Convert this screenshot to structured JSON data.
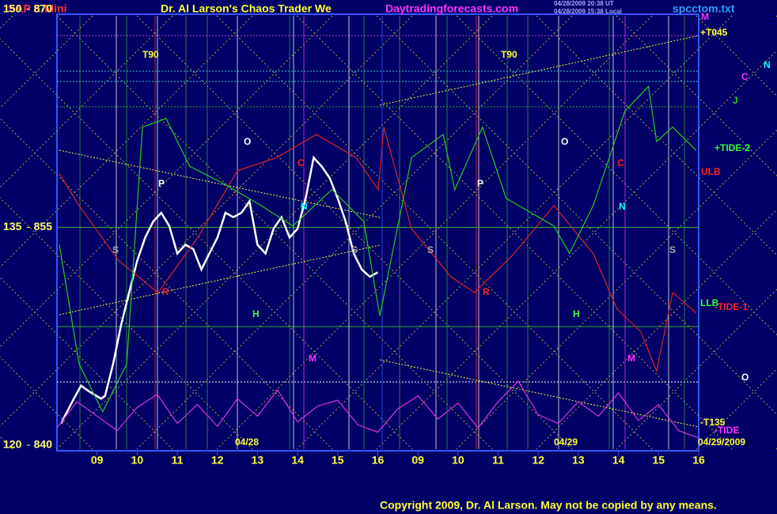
{
  "chart_data": {
    "type": "line",
    "title": "S&P E-Mini",
    "subtitle": "Dr. Al Larson's Chaos Trader We",
    "site": "Daytradingforecasts.com",
    "timestamps": [
      "04/28/2009 20:38 UT",
      "04/28/2009 15:38 Local"
    ],
    "file": "spcctom.txt",
    "copyright": "Copyright 2009, Dr. Al Larson. May not be copied by any means.",
    "xlim": [
      0,
      16
    ],
    "xticks": [
      {
        "value": 1,
        "label": "09"
      },
      {
        "value": 2,
        "label": "10"
      },
      {
        "value": 3,
        "label": "11"
      },
      {
        "value": 4,
        "label": "12"
      },
      {
        "value": 5,
        "label": "13"
      },
      {
        "value": 6,
        "label": "14"
      },
      {
        "value": 7,
        "label": "15"
      },
      {
        "value": 8,
        "label": "16"
      },
      {
        "value": 9,
        "label": "09"
      },
      {
        "value": 10,
        "label": "10"
      },
      {
        "value": 11,
        "label": "11"
      },
      {
        "value": 12,
        "label": "12"
      },
      {
        "value": 13,
        "label": "13"
      },
      {
        "value": 14,
        "label": "14"
      },
      {
        "value": 15,
        "label": "15"
      },
      {
        "value": 16,
        "label": "16"
      }
    ],
    "ylim": [
      840,
      870
    ],
    "yticks": [
      840,
      855,
      870
    ],
    "y2lim": [
      120,
      150
    ],
    "y2ticks": [
      120,
      135,
      150
    ],
    "series": [
      {
        "color": "#ffffff",
        "x": [
          0.1,
          0.4,
          0.6,
          0.8,
          1.1,
          1.2,
          1.4,
          1.6,
          1.8,
          2.0,
          2.2,
          2.4,
          2.6,
          2.8,
          3.0,
          3.2,
          3.4,
          3.6,
          3.8,
          4.0,
          4.2,
          4.4,
          4.6,
          4.8,
          5.0,
          5.2,
          5.4,
          5.6,
          5.8,
          6.0,
          6.2,
          6.4,
          6.6,
          6.8,
          7.0,
          7.2,
          7.4,
          7.6,
          7.8,
          8.0
        ],
        "values": [
          841.5,
          843.1,
          844.1,
          843.7,
          843.2,
          843.4,
          845.6,
          848.3,
          850.5,
          852.7,
          854.3,
          855.4,
          856.0,
          855.1,
          853.2,
          853.8,
          853.5,
          852.1,
          853.2,
          854.3,
          856.0,
          855.7,
          856.0,
          856.8,
          853.8,
          853.2,
          854.9,
          855.7,
          854.3,
          854.9,
          857.0,
          859.8,
          859.2,
          858.4,
          857.0,
          855.4,
          853.2,
          852.1,
          851.6,
          851.9
        ]
      },
      {
        "color": "#dd2222",
        "x": [
          0.06,
          0.55,
          1.54,
          2.52,
          3.51,
          4.5,
          5.48,
          6.47,
          7.46,
          8.01,
          8.15,
          8.84,
          9.82,
          10.41,
          11.4,
          12.39,
          13.37,
          13.96,
          14.56,
          14.95,
          15.35,
          15.94
        ],
        "values": [
          858.7,
          856.5,
          852.7,
          850.5,
          854.3,
          858.9,
          859.8,
          861.4,
          859.8,
          857.6,
          861.9,
          854.9,
          851.6,
          850.5,
          853.2,
          856.5,
          853.2,
          849.4,
          847.8,
          845.1,
          850.5,
          849.1
        ]
      },
      {
        "color": "#22cc22",
        "x": [
          0.06,
          0.55,
          1.14,
          1.74,
          2.13,
          2.72,
          3.31,
          4.1,
          5.09,
          5.88,
          6.86,
          7.65,
          8.05,
          8.84,
          9.63,
          9.92,
          10.61,
          11.2,
          12.39,
          12.78,
          13.37,
          14.16,
          14.75,
          14.95,
          15.35,
          15.94
        ],
        "values": [
          853.8,
          845.6,
          842.3,
          845.6,
          861.9,
          862.5,
          859.2,
          858.1,
          856.5,
          855.1,
          857.6,
          855.4,
          848.9,
          859.8,
          861.4,
          857.6,
          861.9,
          857.0,
          855.1,
          853.2,
          856.5,
          863.0,
          864.7,
          860.9,
          861.9,
          860.3
        ]
      },
      {
        "color": "#dd33dd",
        "x": [
          0,
          0.5,
          1,
          1.5,
          2,
          2.5,
          3,
          3.5,
          4,
          4.5,
          5,
          5.5,
          6,
          6.5,
          7,
          7.5,
          8,
          8.5,
          9,
          9.5,
          10,
          10.5,
          11,
          11.5,
          12,
          12.5,
          13,
          13.5,
          14,
          14.5,
          15,
          15.5,
          16
        ],
        "values": [
          841.2,
          843.0,
          842.0,
          841.0,
          842.6,
          843.5,
          841.5,
          842.8,
          841.3,
          843.2,
          842.0,
          843.8,
          841.6,
          842.7,
          843.1,
          841.4,
          840.9,
          842.5,
          843.4,
          841.8,
          842.9,
          841.2,
          843.0,
          844.4,
          842.1,
          841.5,
          843.0,
          842.0,
          843.6,
          841.7,
          842.8,
          841.0,
          840.5
        ]
      }
    ],
    "annotations": [
      {
        "text": "T90",
        "color": "#ffff33"
      },
      {
        "text": "T90",
        "color": "#ffff33"
      },
      {
        "text": "O",
        "color": "#ffffff"
      },
      {
        "text": "O",
        "color": "#ffffff"
      },
      {
        "text": "P",
        "color": "#ffffff"
      },
      {
        "text": "P",
        "color": "#ffffff"
      },
      {
        "text": "S",
        "color": "#aaaaaa"
      },
      {
        "text": "S",
        "color": "#aaaaaa"
      },
      {
        "text": "S",
        "color": "#aaaaaa"
      },
      {
        "text": "S",
        "color": "#aaaaaa"
      },
      {
        "text": "N",
        "color": "#00ffff"
      },
      {
        "text": "N",
        "color": "#00ffff"
      },
      {
        "text": "C",
        "color": "#ff2222"
      },
      {
        "text": "C",
        "color": "#ff2222"
      },
      {
        "text": "H",
        "color": "#33ff33"
      },
      {
        "text": "H",
        "color": "#33ff33"
      },
      {
        "text": "M",
        "color": "#ff33ff"
      },
      {
        "text": "M",
        "color": "#ff33ff"
      },
      {
        "text": "R",
        "color": "#ff2222"
      },
      {
        "text": "R",
        "color": "#ff2222"
      },
      {
        "text": "M",
        "color": "#ff33ff"
      },
      {
        "text": "+T045",
        "color": "#ffff33"
      },
      {
        "text": "N",
        "color": "#00ffff"
      },
      {
        "text": "C",
        "color": "#ff33ff"
      },
      {
        "text": "J",
        "color": "#33cc33"
      },
      {
        "text": "+TIDE-2",
        "color": "#33ff33"
      },
      {
        "text": "ULB",
        "color": "#ff2222"
      },
      {
        "text": "LLB",
        "color": "#33ff33"
      },
      {
        "text": "-TIDE-1",
        "color": "#ff2222"
      },
      {
        "text": "O",
        "color": "#ffffff"
      },
      {
        "text": "-T135",
        "color": "#ffff33"
      },
      {
        "text": "-TIDE",
        "color": "#ff33ff"
      },
      {
        "text": "04/28",
        "color": "#ffff33"
      },
      {
        "text": "04/29",
        "color": "#ffff33"
      },
      {
        "text": "04/29/2009",
        "color": "#ffff33"
      }
    ]
  }
}
